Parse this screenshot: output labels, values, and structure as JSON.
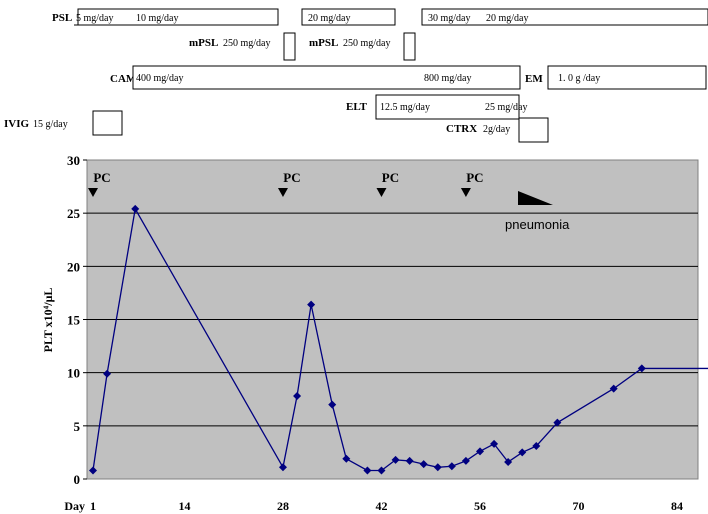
{
  "treatments": {
    "psl": {
      "label": "PSL",
      "dose_a": "5 mg/day",
      "dose_b": "10 mg/day",
      "dose_c": "20 mg/day",
      "dose_d": "30 mg/day",
      "dose_e": "20 mg/day"
    },
    "mpsl_1": {
      "label": "mPSL",
      "dose": "250 mg/day"
    },
    "mpsl_2": {
      "label": "mPSL",
      "dose": "250 mg/day"
    },
    "cam": {
      "label": "CAM",
      "dose_a": "400 mg/day",
      "dose_b": "800 mg/day"
    },
    "em": {
      "label": "EM",
      "dose": "1. 0 g /day"
    },
    "elt": {
      "label": "ELT",
      "dose_a": "12.5 mg/day",
      "dose_b": "25 mg/day"
    },
    "ivig": {
      "label": "IVIG",
      "dose": "15 g/day"
    },
    "ctrx": {
      "label": "CTRX",
      "dose": "2g/day"
    }
  },
  "events": {
    "pc_label": "PC",
    "pc_days": [
      1,
      28,
      42,
      54
    ],
    "pneumonia_label": "pneumonia"
  },
  "chart_data": {
    "type": "line",
    "ylabel": "PLT x10⁴/μL",
    "xlabel_prefix": "Day",
    "ylim": [
      0,
      30
    ],
    "yticks": [
      0,
      5,
      10,
      15,
      20,
      25,
      30
    ],
    "xlim": [
      1,
      89
    ],
    "xticks": [
      1,
      14,
      28,
      42,
      56,
      70,
      84
    ],
    "grid": "horizontal",
    "series": [
      {
        "color": "#000080",
        "x": [
          1,
          3,
          7,
          28,
          30,
          32,
          35,
          37,
          40,
          42,
          44,
          46,
          48,
          50,
          52,
          54,
          56,
          58,
          60,
          62,
          64,
          67,
          75,
          79,
          89
        ],
        "y": [
          0.8,
          9.9,
          25.4,
          1.1,
          7.8,
          16.4,
          7.0,
          1.9,
          0.8,
          0.8,
          1.8,
          1.7,
          1.4,
          1.1,
          1.2,
          1.7,
          2.6,
          3.3,
          1.6,
          2.5,
          3.1,
          5.3,
          8.5,
          10.4,
          10.4
        ]
      }
    ]
  }
}
